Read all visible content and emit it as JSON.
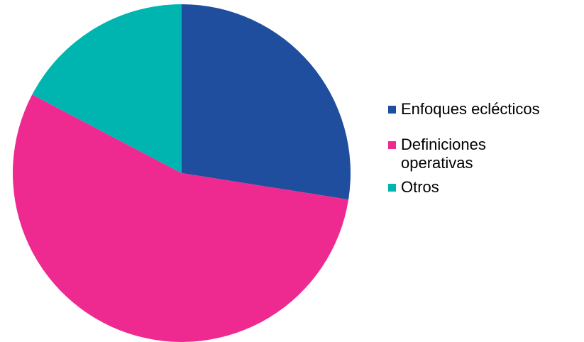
{
  "chart_data": {
    "type": "pie",
    "title": "",
    "start_angle_deg": 0,
    "direction": "clockwise",
    "slices": [
      {
        "label": "Enfoques eclécticos",
        "value": 27.5,
        "color": "#1f4e9e"
      },
      {
        "label": "Definiciones operativas",
        "value": 55.2,
        "color": "#ee2a91"
      },
      {
        "label": "Otros",
        "value": 17.3,
        "color": "#00b5b0"
      }
    ],
    "legend_position": "right"
  },
  "legend": {
    "items": [
      {
        "label": "Enfoques eclécticos"
      },
      {
        "label": "Definiciones operativas"
      },
      {
        "label": "Otros"
      }
    ]
  }
}
